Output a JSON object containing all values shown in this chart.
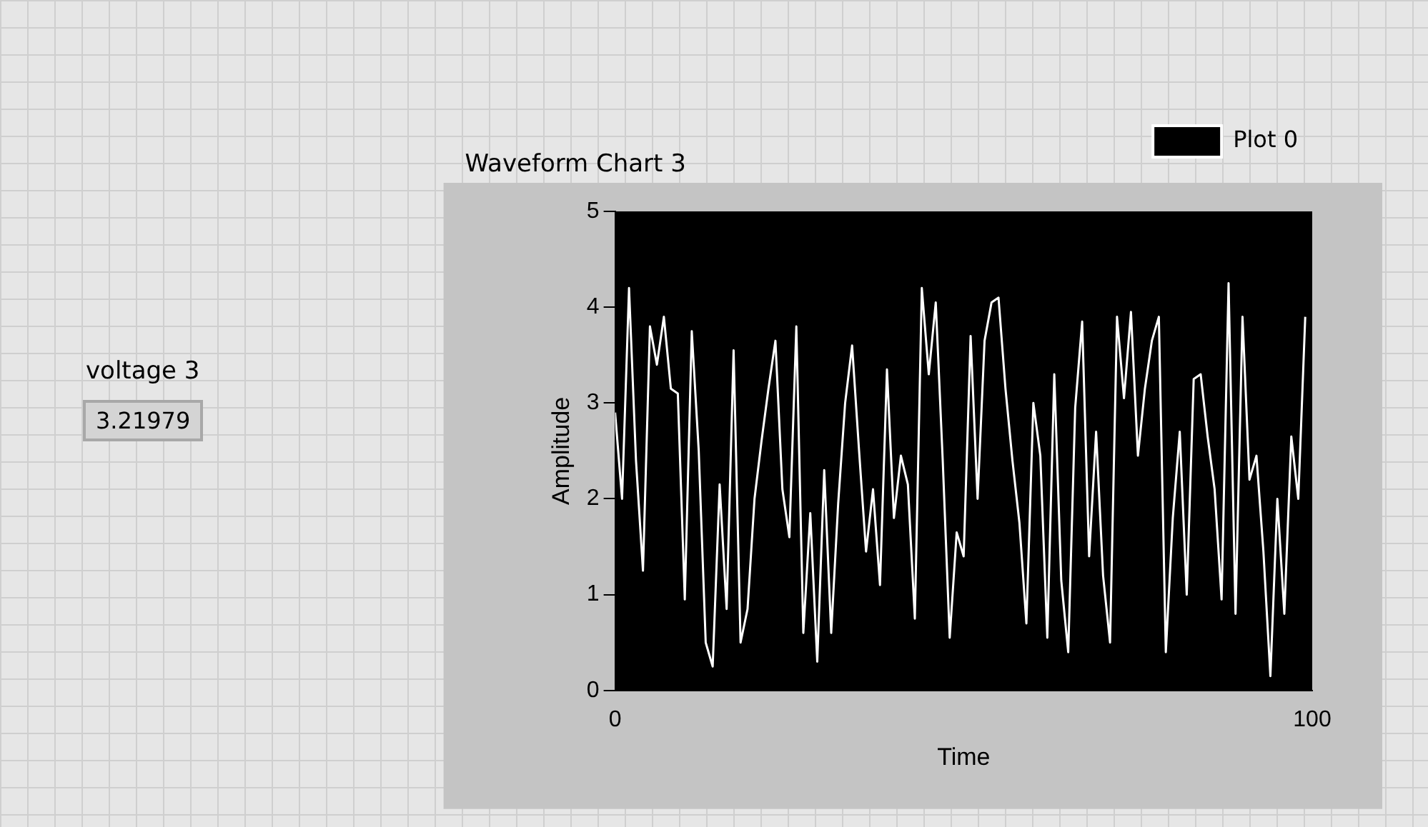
{
  "chart_data": {
    "type": "line",
    "title": "Waveform Chart 3",
    "xlabel": "Time",
    "ylabel": "Amplitude",
    "annotations": [
      "voltage 3",
      "3.21979"
    ],
    "x": [
      0,
      1,
      2,
      3,
      4,
      5,
      6,
      7,
      8,
      9,
      10,
      11,
      12,
      13,
      14,
      15,
      16,
      17,
      18,
      19,
      20,
      21,
      22,
      23,
      24,
      25,
      26,
      27,
      28,
      29,
      30,
      31,
      32,
      33,
      34,
      35,
      36,
      37,
      38,
      39,
      40,
      41,
      42,
      43,
      44,
      45,
      46,
      47,
      48,
      49,
      50,
      51,
      52,
      53,
      54,
      55,
      56,
      57,
      58,
      59,
      60,
      61,
      62,
      63,
      64,
      65,
      66,
      67,
      68,
      69,
      70,
      71,
      72,
      73,
      74,
      75,
      76,
      77,
      78,
      79,
      80,
      81,
      82,
      83,
      84,
      85,
      86,
      87,
      88,
      89,
      90,
      91,
      92,
      93,
      94,
      95,
      96,
      97,
      98,
      99
    ],
    "series": [
      {
        "name": "Plot 0",
        "color": "#ffffff",
        "values": [
          2.9,
          2.0,
          4.2,
          2.4,
          1.25,
          3.8,
          3.4,
          3.9,
          3.15,
          3.1,
          0.95,
          3.75,
          2.5,
          0.5,
          0.25,
          2.15,
          0.85,
          3.55,
          0.5,
          0.85,
          2.0,
          2.6,
          3.15,
          3.65,
          2.1,
          1.6,
          3.8,
          0.6,
          1.85,
          0.3,
          2.3,
          0.6,
          1.95,
          3.0,
          3.6,
          2.5,
          1.45,
          2.1,
          1.1,
          3.35,
          1.8,
          2.45,
          2.15,
          0.75,
          4.2,
          3.3,
          4.05,
          2.4,
          0.55,
          1.65,
          1.4,
          3.7,
          2.0,
          3.65,
          4.05,
          4.1,
          3.15,
          2.4,
          1.75,
          0.7,
          3.0,
          2.45,
          0.55,
          3.3,
          1.15,
          0.4,
          2.95,
          3.85,
          1.4,
          2.7,
          1.2,
          0.5,
          3.9,
          3.05,
          3.95,
          2.45,
          3.15,
          3.65,
          3.9,
          0.4,
          1.8,
          2.7,
          1.0,
          3.25,
          3.3,
          2.65,
          2.1,
          0.95,
          4.25,
          0.8,
          3.9,
          2.2,
          2.45,
          1.45,
          0.15,
          2.0,
          0.8,
          2.65,
          2.0,
          3.9
        ]
      }
    ],
    "xlim": [
      0,
      100
    ],
    "xticks": [
      0,
      100
    ],
    "ylim": [
      0,
      5
    ],
    "yticks": [
      0,
      1,
      2,
      3,
      4,
      5
    ],
    "grid": false,
    "legend": "top right",
    "marker": "none",
    "line_style": "solid"
  }
}
